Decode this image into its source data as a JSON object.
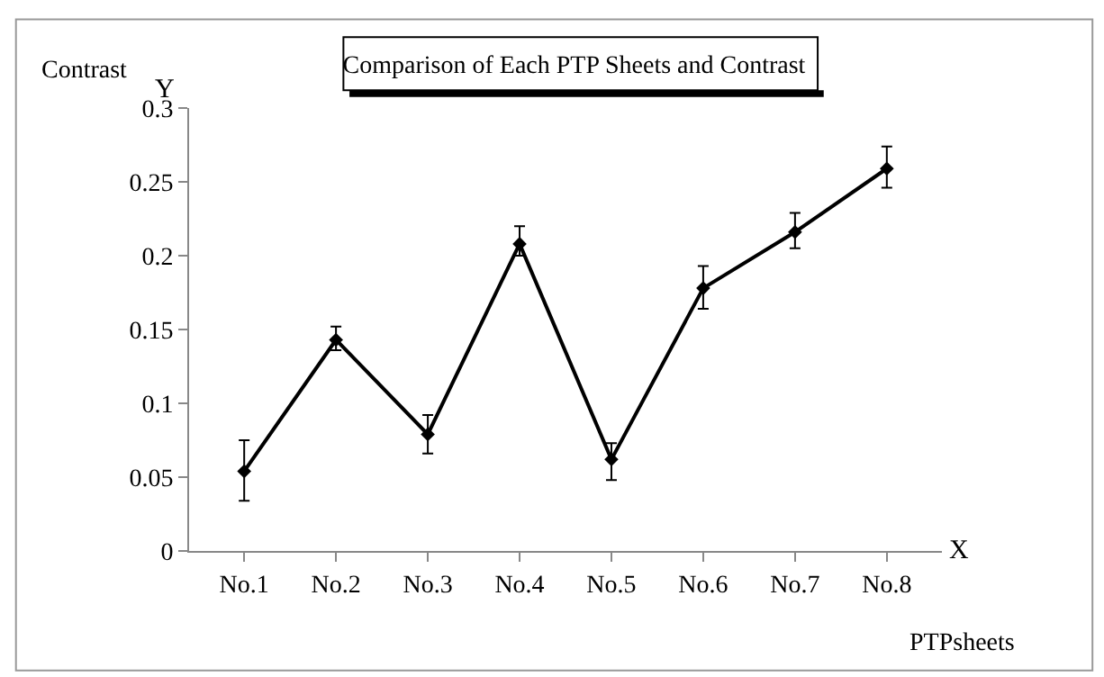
{
  "chart_data": {
    "type": "line",
    "title": "Comparison of Each PTP Sheets and Contrast",
    "xlabel": "PTPsheets",
    "ylabel": "Contrast",
    "annotations": [
      "Y",
      "X"
    ],
    "categories": [
      "No.1",
      "No.2",
      "No.3",
      "No.4",
      "No.5",
      "No.6",
      "No.7",
      "No.8"
    ],
    "series": [
      {
        "color": "#000000",
        "values": [
          0.054,
          0.143,
          0.079,
          0.208,
          0.062,
          0.178,
          0.216,
          0.259
        ],
        "errors": [
          [
            0.034,
            0.075
          ],
          [
            0.136,
            0.152
          ],
          [
            0.066,
            0.092
          ],
          [
            0.2,
            0.22
          ],
          [
            0.048,
            0.073
          ],
          [
            0.164,
            0.193
          ],
          [
            0.205,
            0.229
          ],
          [
            0.246,
            0.274
          ]
        ]
      }
    ],
    "ylim": [
      0,
      0.3
    ],
    "yticks": [
      0,
      0.05,
      0.1,
      0.15,
      0.2,
      0.25,
      0.3
    ],
    "marker": "diamond",
    "line_style": "solid"
  }
}
